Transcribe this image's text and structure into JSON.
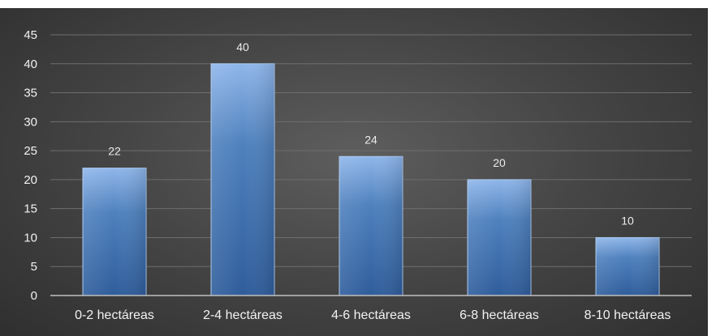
{
  "chart_data": {
    "type": "bar",
    "categories": [
      "0-2 hectáreas",
      "2-4 hectáreas",
      "4-6 hectáreas",
      "6-8 hectáreas",
      "8-10 hectáreas"
    ],
    "values": [
      22,
      40,
      24,
      20,
      10
    ],
    "title": "",
    "xlabel": "",
    "ylabel": "",
    "ylim": [
      0,
      45
    ],
    "yticks": [
      "0",
      "5",
      "10",
      "15",
      "20",
      "25",
      "30",
      "35",
      "40",
      "45"
    ],
    "data_labels": [
      "22",
      "40",
      "24",
      "20",
      "10"
    ],
    "grid": true,
    "legend": "none",
    "colors": {
      "bar_top": "#8fb6ea",
      "bar_mid": "#4f81bd",
      "bar_bottom": "#2f5d9b",
      "bar_edge": "#a9c7ef",
      "gridline": "#6e6e6e",
      "axis": "#bfbfbf"
    }
  }
}
